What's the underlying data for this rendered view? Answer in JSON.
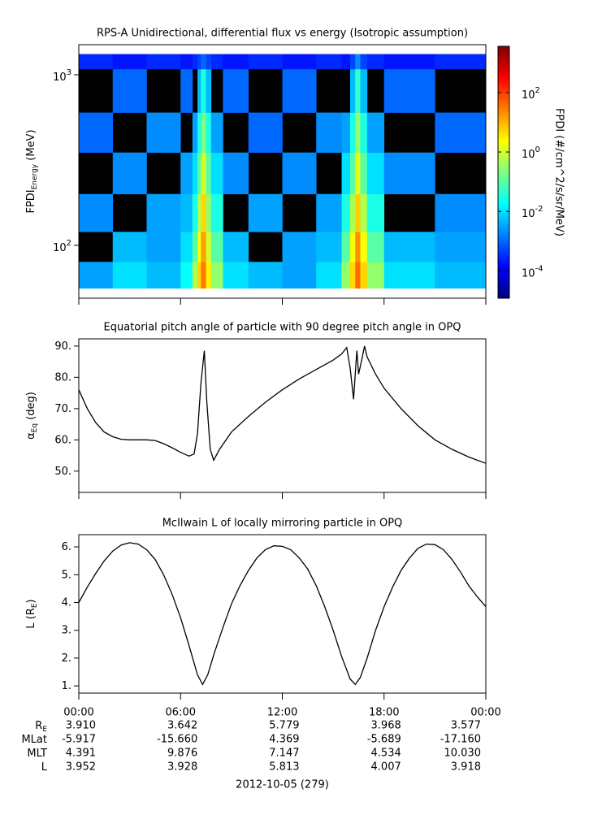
{
  "chart_data": [
    {
      "type": "heatmap",
      "title": "RPS-A Unidirectional, differential flux vs energy (Isotropic assumption)",
      "ylabel": [
        {
          "text": "FPDI"
        },
        {
          "sub": "Energy"
        },
        {
          "text": " (MeV)"
        }
      ],
      "x": [
        0,
        2,
        4,
        6,
        6.7,
        7.0,
        7.2,
        7.5,
        7.8,
        8.5,
        10,
        12,
        14,
        15.5,
        16.0,
        16.3,
        16.6,
        17.0,
        18,
        21,
        24
      ],
      "y": [
        56,
        80,
        120,
        200,
        350,
        600,
        1080,
        1320
      ],
      "values": [
        [
          0.003,
          0.01,
          0.005,
          0.02,
          0.5,
          5,
          30,
          3,
          0.3,
          0.01,
          0.005,
          0.003,
          0.01,
          0.3,
          5,
          40,
          5,
          0.3,
          0.01,
          0.005
        ],
        [
          null,
          0.005,
          0.003,
          0.01,
          0.1,
          2,
          15,
          1,
          0.1,
          0.005,
          null,
          0.003,
          0.005,
          0.1,
          2,
          20,
          2,
          0.1,
          0.005,
          0.003
        ],
        [
          0.002,
          null,
          0.003,
          0.005,
          0.03,
          0.5,
          5,
          0.3,
          0.03,
          null,
          0.003,
          null,
          0.003,
          0.03,
          0.5,
          6,
          0.5,
          0.03,
          null,
          0.002
        ],
        [
          null,
          0.002,
          null,
          0.003,
          0.01,
          0.1,
          1,
          0.1,
          0.01,
          0.002,
          null,
          0.002,
          null,
          0.01,
          0.1,
          1.5,
          0.1,
          0.01,
          0.002,
          null
        ],
        [
          0.001,
          null,
          0.002,
          null,
          0.003,
          0.03,
          0.2,
          0.03,
          0.003,
          null,
          0.001,
          null,
          0.002,
          0.003,
          0.03,
          0.3,
          0.03,
          0.003,
          null,
          0.001
        ],
        [
          null,
          0.001,
          null,
          0.001,
          null,
          0.005,
          0.03,
          0.005,
          null,
          0.001,
          null,
          0.001,
          null,
          null,
          0.005,
          0.05,
          0.005,
          null,
          0.001,
          null
        ],
        [
          0.0003,
          0.0002,
          0.0003,
          0.0002,
          0.0003,
          0.0005,
          0.001,
          0.0005,
          0.0003,
          0.0002,
          0.0003,
          0.0002,
          0.0003,
          0.0002,
          0.0005,
          0.002,
          0.0005,
          0.0003,
          0.0002,
          0.0003
        ]
      ],
      "no_data_color": "#000000",
      "colorscale": "jet",
      "xlim": [
        0,
        24
      ],
      "xticks": [
        0,
        6,
        12,
        18,
        24
      ],
      "ylim": [
        49,
        1500
      ],
      "yscale": "log",
      "yticks": [
        {
          "value": 100,
          "base": "10",
          "exponent": "2"
        },
        {
          "value": 1000,
          "base": "10",
          "exponent": "3"
        }
      ],
      "clim": [
        1.2e-05,
        3600
      ],
      "cscale": "log",
      "cticks": [
        {
          "value": 0.0001,
          "base": "10",
          "exponent": "-4"
        },
        {
          "value": 0.01,
          "base": "10",
          "exponent": "-2"
        },
        {
          "value": 1,
          "base": "10",
          "exponent": "0"
        },
        {
          "value": 100,
          "base": "10",
          "exponent": "2"
        }
      ],
      "colorbar_label": "FPDI (#/cm^2/s/sr/MeV)"
    },
    {
      "type": "line",
      "title": "Equatorial pitch angle of particle with 90 degree pitch angle in OPQ",
      "ylabel": [
        {
          "text": "α"
        },
        {
          "sub": "Eq"
        },
        {
          "text": " (deg)"
        }
      ],
      "color": "#000000",
      "x": [
        0,
        0.5,
        1,
        1.5,
        2,
        2.5,
        3,
        4,
        4.5,
        5,
        5.5,
        6,
        6.5,
        6.8,
        7.0,
        7.2,
        7.4,
        7.55,
        7.75,
        7.95,
        8.3,
        9,
        10,
        11,
        12,
        13,
        14,
        15,
        15.5,
        15.8,
        16.0,
        16.2,
        16.35,
        16.4,
        16.5,
        16.7,
        16.85,
        17.0,
        17.5,
        18,
        19,
        20,
        21,
        22,
        23,
        24
      ],
      "values": [
        76,
        70,
        65.5,
        62.5,
        61,
        60.2,
        60,
        60,
        59.8,
        58.8,
        57.5,
        56,
        54.8,
        55.5,
        62,
        78,
        88.5,
        72,
        57,
        53.5,
        57,
        62.5,
        67.5,
        72,
        76,
        79.5,
        82.5,
        85.5,
        87.5,
        89.5,
        83,
        73,
        85,
        88.5,
        81,
        86,
        90,
        86.5,
        81,
        76.5,
        70,
        64.5,
        60,
        57,
        54.5,
        52.5
      ],
      "xlim": [
        0,
        24
      ],
      "xticks": [
        0,
        6,
        12,
        18,
        24
      ],
      "ylim": [
        43.2,
        92.3
      ],
      "yticks": [
        {
          "value": 50,
          "label": "50."
        },
        {
          "value": 60,
          "label": "60."
        },
        {
          "value": 70,
          "label": "70."
        },
        {
          "value": 80,
          "label": "80."
        },
        {
          "value": 90,
          "label": "90."
        }
      ]
    },
    {
      "type": "line",
      "title": "McIlwain L of locally mirroring particle in OPQ",
      "ylabel": [
        {
          "text": "L (R"
        },
        {
          "sub": "E"
        },
        {
          "text": ")"
        }
      ],
      "color": "#000000",
      "x": [
        0,
        0.5,
        1,
        1.5,
        2,
        2.5,
        3,
        3.5,
        4,
        4.5,
        5,
        5.5,
        6,
        6.5,
        7,
        7.3,
        7.6,
        8,
        8.5,
        9,
        9.5,
        10,
        10.5,
        11,
        11.5,
        12,
        12.5,
        13,
        13.5,
        14,
        14.5,
        15,
        15.5,
        16,
        16.3,
        16.6,
        17,
        17.5,
        18,
        18.5,
        19,
        19.5,
        20,
        20.5,
        21,
        21.5,
        22,
        22.5,
        23,
        23.5,
        24
      ],
      "values": [
        4.0,
        4.55,
        5.05,
        5.5,
        5.85,
        6.07,
        6.15,
        6.1,
        5.9,
        5.55,
        5.0,
        4.3,
        3.45,
        2.45,
        1.4,
        1.05,
        1.4,
        2.2,
        3.1,
        3.95,
        4.6,
        5.15,
        5.6,
        5.9,
        6.04,
        6.02,
        5.9,
        5.6,
        5.2,
        4.6,
        3.85,
        3.0,
        2.05,
        1.25,
        1.05,
        1.3,
        2.0,
        3.0,
        3.85,
        4.55,
        5.15,
        5.6,
        5.95,
        6.1,
        6.08,
        5.9,
        5.55,
        5.1,
        4.6,
        4.2,
        3.85
      ],
      "xlim": [
        0,
        24
      ],
      "xticks": [
        {
          "value": 0,
          "label": "00:00"
        },
        {
          "value": 6,
          "label": "06:00"
        },
        {
          "value": 12,
          "label": "12:00"
        },
        {
          "value": 18,
          "label": "18:00"
        },
        {
          "value": 24,
          "label": "00:00"
        }
      ],
      "ylim": [
        0.74,
        6.44
      ],
      "yticks": [
        {
          "value": 1,
          "label": "1."
        },
        {
          "value": 2,
          "label": "2."
        },
        {
          "value": 3,
          "label": "3."
        },
        {
          "value": 4,
          "label": "4."
        },
        {
          "value": 5,
          "label": "5."
        },
        {
          "value": 6,
          "label": "6."
        }
      ]
    }
  ],
  "ephemeris": {
    "rows": [
      {
        "label": "R",
        "label_sub": "E",
        "values": [
          "3.910",
          "3.642",
          "5.779",
          "3.968",
          "3.577"
        ]
      },
      {
        "label": "MLat",
        "values": [
          "-5.917",
          "-15.660",
          "4.369",
          "-5.689",
          "-17.160"
        ]
      },
      {
        "label": "MLT",
        "values": [
          "4.391",
          "9.876",
          "7.147",
          "4.534",
          "10.030"
        ]
      },
      {
        "label": "L",
        "values": [
          "3.952",
          "3.928",
          "5.813",
          "4.007",
          "3.918"
        ]
      }
    ],
    "date": "2012-10-05 (279)"
  }
}
